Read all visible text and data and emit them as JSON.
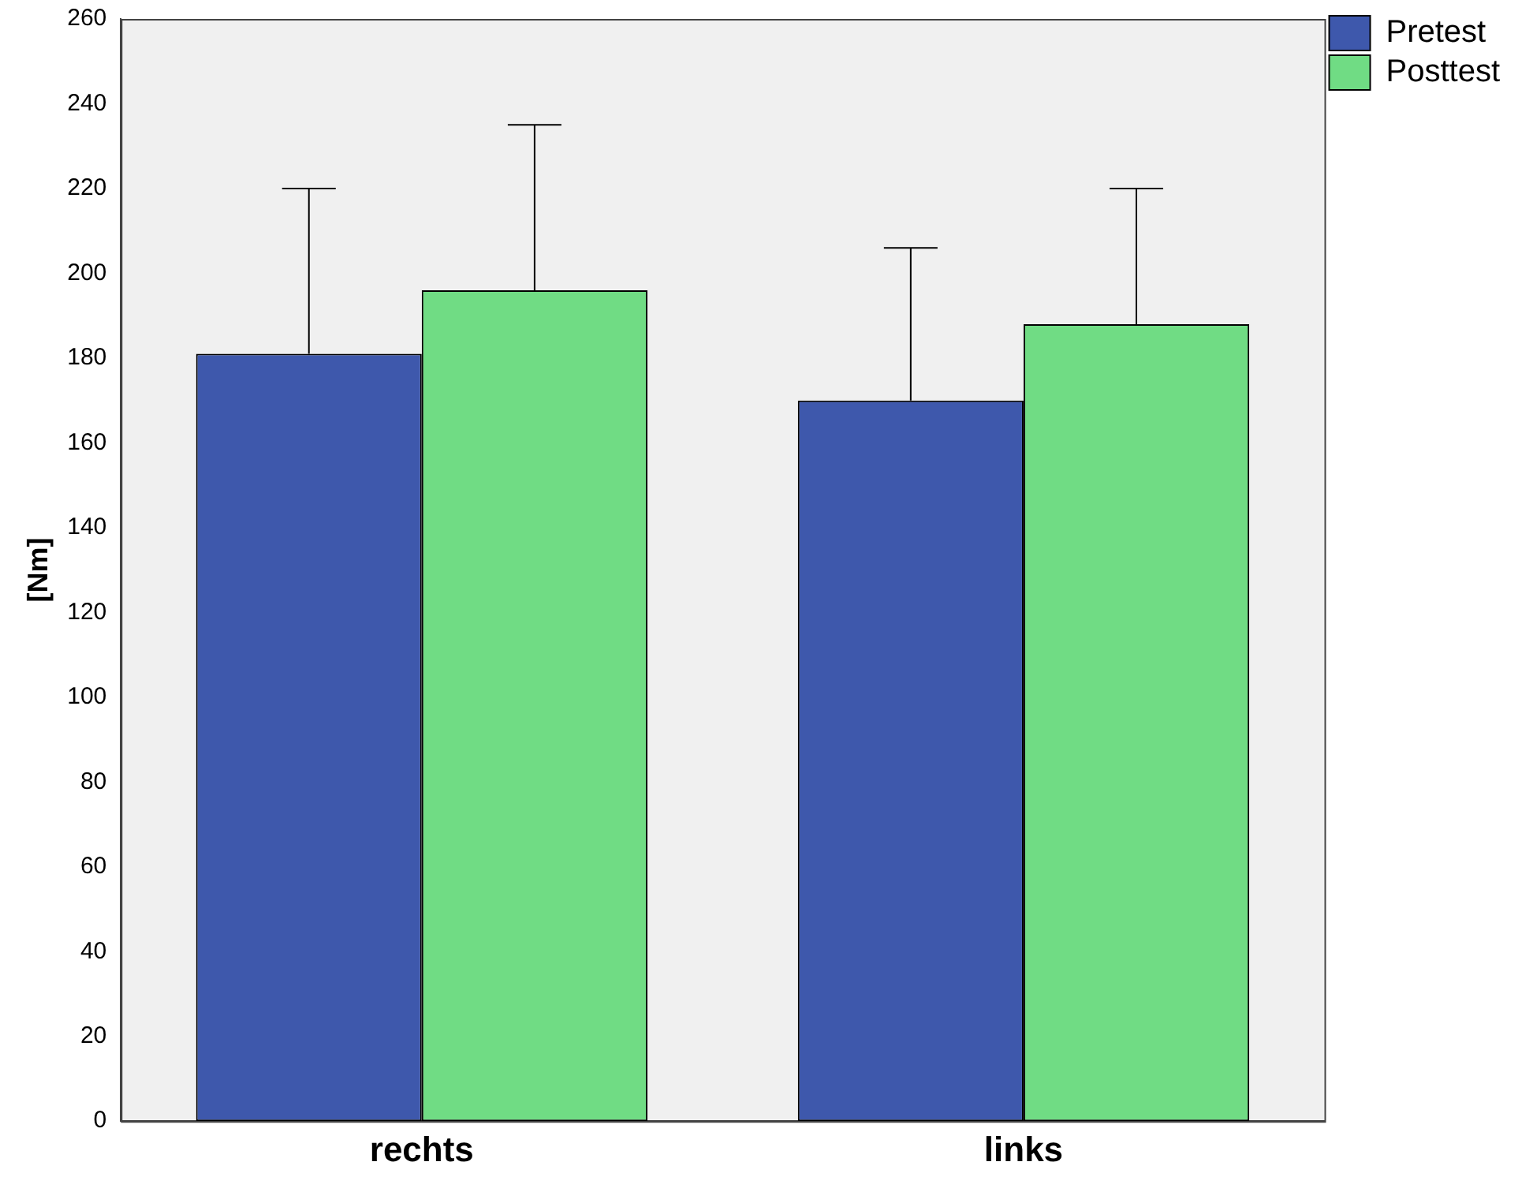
{
  "chart_data": {
    "type": "bar",
    "ylabel": "[Nm]",
    "categories": [
      "rechts",
      "links"
    ],
    "series": [
      {
        "name": "Pretest",
        "color": "#3e58ac",
        "values": [
          181,
          170
        ],
        "errors": [
          [
            181,
            220
          ],
          [
            170,
            206
          ]
        ]
      },
      {
        "name": "Posttest",
        "color": "#70dc84",
        "values": [
          196,
          188
        ],
        "errors": [
          [
            196,
            235
          ],
          [
            188,
            220
          ]
        ]
      }
    ],
    "ylim": [
      0,
      260
    ],
    "yticks": [
      0,
      20,
      40,
      60,
      80,
      100,
      120,
      140,
      160,
      180,
      200,
      220,
      240,
      260
    ],
    "grid": false,
    "legend": "top right"
  }
}
